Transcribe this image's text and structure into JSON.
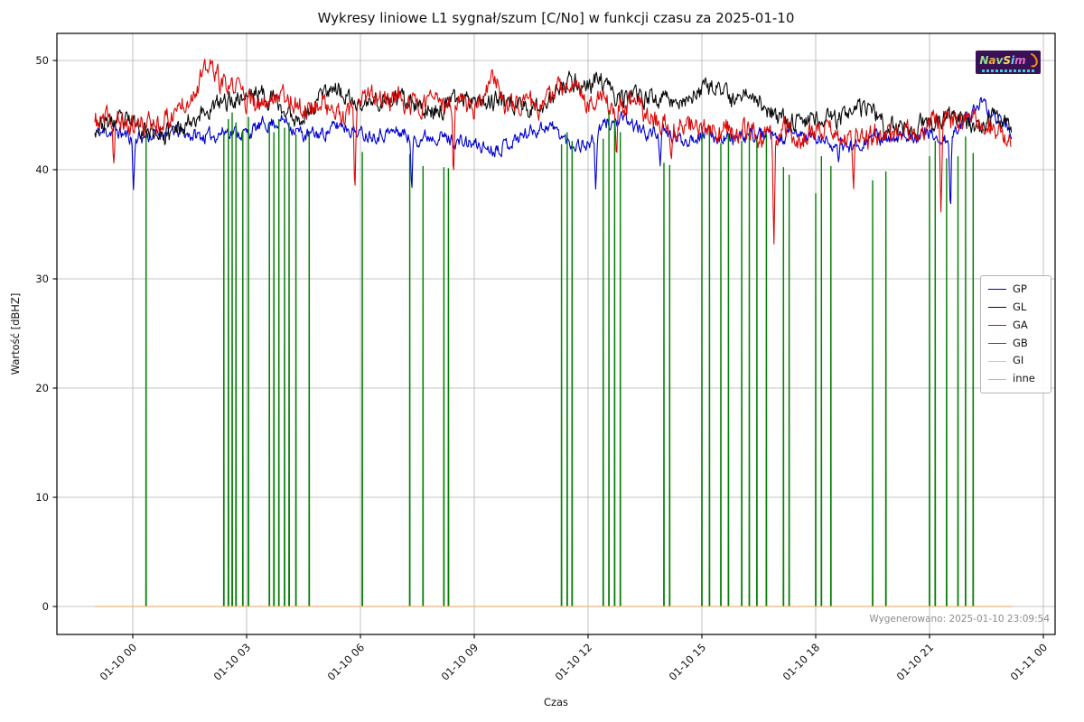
{
  "figure": {
    "generated_note": "Wygenerowano: 2025-01-10 23:09:54"
  },
  "logo": {
    "text": "NavSim",
    "letter_colors": [
      "#8fe08f",
      "#f0a840",
      "#8fe08f",
      "#f0e060",
      "#70d0f0",
      "#e070c0"
    ],
    "bg": "#3a1057",
    "swoosh_color": "#f4930f"
  },
  "chart_data": {
    "type": "line",
    "title": "Wykresy liniowe L1 sygnał/szum [C/No] w funkcji czasu za 2025-01-10",
    "xlabel": "Czas",
    "ylabel": "Wartość [dBHZ]",
    "grid": true,
    "grid_color": "#b0b0b0",
    "xlim_hours": [
      -2.0,
      24.31
    ],
    "ylim": [
      -2.56,
      52.48
    ],
    "y_ticks": [
      0,
      10,
      20,
      30,
      40,
      50
    ],
    "x_ticks": [
      {
        "hour": 0,
        "label": "01-10 00"
      },
      {
        "hour": 3,
        "label": "01-10 03"
      },
      {
        "hour": 6,
        "label": "01-10 06"
      },
      {
        "hour": 9,
        "label": "01-10 09"
      },
      {
        "hour": 12,
        "label": "01-10 12"
      },
      {
        "hour": 15,
        "label": "01-10 15"
      },
      {
        "hour": 18,
        "label": "01-10 18"
      },
      {
        "hour": 21,
        "label": "01-10 21"
      },
      {
        "hour": 24,
        "label": "01-11 00"
      }
    ],
    "time_range_hours": [
      -1.0,
      23.17
    ],
    "legend_position": "right",
    "series": [
      {
        "name": "GP",
        "color": "#0000d0",
        "width": 1.1,
        "seed": 11,
        "noise": 0.6,
        "anchors": [
          [
            -1,
            43.3
          ],
          [
            -0.5,
            43.6
          ],
          [
            0,
            42.9
          ],
          [
            0.5,
            43.1
          ],
          [
            1,
            43.6
          ],
          [
            1.5,
            43.2
          ],
          [
            2,
            43.0
          ],
          [
            2.5,
            43.6
          ],
          [
            3,
            43.3
          ],
          [
            3.5,
            44.2
          ],
          [
            4,
            44.5
          ],
          [
            4.5,
            43.1
          ],
          [
            5,
            43.3
          ],
          [
            5.5,
            44.2
          ],
          [
            6,
            43.3
          ],
          [
            6.5,
            43.3
          ],
          [
            7,
            43.5
          ],
          [
            7.5,
            42.9
          ],
          [
            8,
            43.2
          ],
          [
            8.5,
            42.6
          ],
          [
            9,
            42.3
          ],
          [
            9.5,
            41.9
          ],
          [
            10,
            42.6
          ],
          [
            10.5,
            43.6
          ],
          [
            11,
            44.1
          ],
          [
            11.5,
            42.4
          ],
          [
            12,
            42.3
          ],
          [
            12.5,
            44.3
          ],
          [
            13,
            44.5
          ],
          [
            13.5,
            43.4
          ],
          [
            14,
            43.3
          ],
          [
            14.5,
            42.7
          ],
          [
            15,
            43.3
          ],
          [
            15.5,
            43.0
          ],
          [
            16,
            42.8
          ],
          [
            16.5,
            43.3
          ],
          [
            17,
            42.7
          ],
          [
            17.5,
            43.3
          ],
          [
            18,
            42.8
          ],
          [
            18.5,
            42.4
          ],
          [
            19,
            42.1
          ],
          [
            19.5,
            43.2
          ],
          [
            20,
            42.5
          ],
          [
            20.5,
            43.2
          ],
          [
            21,
            43.3
          ],
          [
            21.5,
            42.5
          ],
          [
            22,
            45.1
          ],
          [
            22.5,
            45.6
          ],
          [
            23,
            44.2
          ],
          [
            23.17,
            43.4
          ]
        ],
        "events": [
          [
            0.02,
            38.3
          ],
          [
            7.35,
            37.9
          ],
          [
            12.2,
            38.4
          ],
          [
            13.9,
            40.9
          ],
          [
            18.6,
            39.9
          ],
          [
            21.55,
            36.2
          ],
          [
            22.35,
            46.1
          ]
        ]
      },
      {
        "name": "GL",
        "color": "#0a0a0a",
        "width": 1.1,
        "seed": 23,
        "noise": 0.8,
        "anchors": [
          [
            -1,
            43.9
          ],
          [
            -0.5,
            44.4
          ],
          [
            0,
            44.3
          ],
          [
            0.5,
            43.5
          ],
          [
            1,
            43.3
          ],
          [
            1.5,
            44.6
          ],
          [
            2,
            45.5
          ],
          [
            2.5,
            46.3
          ],
          [
            3,
            46.8
          ],
          [
            3.3,
            47.1
          ],
          [
            3.7,
            46.4
          ],
          [
            4,
            45.3
          ],
          [
            4.3,
            44.7
          ],
          [
            4.7,
            45.4
          ],
          [
            5,
            47.2
          ],
          [
            5.3,
            47.7
          ],
          [
            5.7,
            46.2
          ],
          [
            6,
            45.8
          ],
          [
            6.5,
            46.3
          ],
          [
            7,
            46.4
          ],
          [
            7.5,
            45.6
          ],
          [
            8,
            45.4
          ],
          [
            8.5,
            46.4
          ],
          [
            9,
            46.7
          ],
          [
            9.5,
            46.2
          ],
          [
            10,
            46.3
          ],
          [
            10.5,
            45.5
          ],
          [
            11,
            46.4
          ],
          [
            11.3,
            47.4
          ],
          [
            11.6,
            48.2
          ],
          [
            12,
            47.6
          ],
          [
            12.3,
            48.3
          ],
          [
            12.6,
            47.0
          ],
          [
            13,
            46.4
          ],
          [
            13.5,
            46.6
          ],
          [
            14,
            46.6
          ],
          [
            14.5,
            46.3
          ],
          [
            15,
            47.1
          ],
          [
            15.4,
            47.5
          ],
          [
            15.8,
            46.2
          ],
          [
            16,
            46.8
          ],
          [
            16.3,
            47.2
          ],
          [
            16.6,
            46.0
          ],
          [
            17,
            44.7
          ],
          [
            17.5,
            44.5
          ],
          [
            18,
            44.8
          ],
          [
            18.5,
            44.6
          ],
          [
            19,
            45.2
          ],
          [
            19.4,
            45.6
          ],
          [
            19.8,
            44.3
          ],
          [
            20,
            44.1
          ],
          [
            20.5,
            43.7
          ],
          [
            21,
            44.4
          ],
          [
            21.5,
            44.9
          ],
          [
            22,
            44.3
          ],
          [
            22.3,
            43.5
          ],
          [
            22.7,
            44.6
          ],
          [
            23,
            44.6
          ],
          [
            23.17,
            44.2
          ]
        ],
        "events": [
          [
            0.85,
            41.8
          ],
          [
            5.05,
            48.4
          ],
          [
            19.8,
            42.1
          ]
        ]
      },
      {
        "name": "GA",
        "color": "#dd0707",
        "width": 1.1,
        "seed": 37,
        "noise": 0.95,
        "anchors": [
          [
            -1,
            44.3
          ],
          [
            -0.5,
            44.6
          ],
          [
            0,
            43.9
          ],
          [
            0.5,
            44.3
          ],
          [
            1,
            44.8
          ],
          [
            1.3,
            46.2
          ],
          [
            1.6,
            47.2
          ],
          [
            1.9,
            48.9
          ],
          [
            2.1,
            49.3
          ],
          [
            2.3,
            48.0
          ],
          [
            2.5,
            47.3
          ],
          [
            2.8,
            47.7
          ],
          [
            3,
            46.4
          ],
          [
            3.3,
            45.5
          ],
          [
            3.6,
            46.7
          ],
          [
            3.9,
            47.2
          ],
          [
            4.2,
            46.4
          ],
          [
            4.5,
            45.4
          ],
          [
            5,
            46.2
          ],
          [
            5.3,
            45.2
          ],
          [
            5.6,
            44.5
          ],
          [
            6,
            46.1
          ],
          [
            6.3,
            46.7
          ],
          [
            6.6,
            46.4
          ],
          [
            7,
            46.5
          ],
          [
            7.3,
            45.8
          ],
          [
            7.6,
            46.2
          ],
          [
            8,
            46.4
          ],
          [
            8.3,
            45.5
          ],
          [
            8.6,
            46.1
          ],
          [
            9,
            45.5
          ],
          [
            9.3,
            46.7
          ],
          [
            9.5,
            48.4
          ],
          [
            9.8,
            46.3
          ],
          [
            10,
            45.9
          ],
          [
            10.3,
            46.4
          ],
          [
            10.6,
            45.7
          ],
          [
            11,
            46.3
          ],
          [
            11.3,
            47.7
          ],
          [
            11.5,
            48.2
          ],
          [
            11.8,
            47.1
          ],
          [
            12,
            46.4
          ],
          [
            12.3,
            46.3
          ],
          [
            12.6,
            45.7
          ],
          [
            13,
            45.8
          ],
          [
            13.3,
            46.1
          ],
          [
            13.6,
            44.9
          ],
          [
            14,
            44.1
          ],
          [
            14.3,
            43.5
          ],
          [
            14.6,
            44.3
          ],
          [
            15,
            43.7
          ],
          [
            15.3,
            43.3
          ],
          [
            15.6,
            43.8
          ],
          [
            16,
            43.5
          ],
          [
            16.3,
            43.8
          ],
          [
            16.6,
            42.9
          ],
          [
            17,
            43.2
          ],
          [
            17.3,
            43.6
          ],
          [
            17.6,
            42.9
          ],
          [
            18,
            43.4
          ],
          [
            18.3,
            43.8
          ],
          [
            18.6,
            43.2
          ],
          [
            19,
            42.5
          ],
          [
            19.3,
            42.8
          ],
          [
            19.6,
            43.2
          ],
          [
            20,
            43.0
          ],
          [
            20.3,
            43.4
          ],
          [
            20.6,
            43.2
          ],
          [
            21,
            44.3
          ],
          [
            21.3,
            44.6
          ],
          [
            21.6,
            44.3
          ],
          [
            22,
            44.6
          ],
          [
            22.3,
            44.4
          ],
          [
            22.6,
            44.0
          ],
          [
            23,
            43.2
          ],
          [
            23.17,
            42.7
          ]
        ],
        "events": [
          [
            -0.5,
            40.4
          ],
          [
            2.05,
            49.6
          ],
          [
            5.85,
            37.6
          ],
          [
            8.45,
            40.1
          ],
          [
            9.5,
            48.7
          ],
          [
            12.75,
            41.4
          ],
          [
            14.2,
            40.5
          ],
          [
            16.9,
            34.3
          ],
          [
            19.0,
            37.9
          ],
          [
            21.3,
            36.0
          ]
        ]
      },
      {
        "name": "GB",
        "color": "#057f05",
        "width": 1.0,
        "baseline": 0,
        "spike_times": [
          0.35,
          2.4,
          2.52,
          2.62,
          2.72,
          2.9,
          3.05,
          3.6,
          3.72,
          3.85,
          4.0,
          4.12,
          4.3,
          4.65,
          6.05,
          7.3,
          7.65,
          8.2,
          8.32,
          11.3,
          11.45,
          11.58,
          12.4,
          12.55,
          12.7,
          12.85,
          14.0,
          14.15,
          15.0,
          15.2,
          15.5,
          15.7,
          16.05,
          16.25,
          16.45,
          16.7,
          17.15,
          17.3,
          18.0,
          18.15,
          18.4,
          19.5,
          19.85,
          21.0,
          21.15,
          21.45,
          21.75,
          21.95,
          22.15
        ],
        "spike_heights": [
          43.2,
          43.3,
          44.6,
          45.2,
          44.3,
          43.6,
          44.8,
          44.3,
          43.4,
          44.6,
          43.8,
          44.3,
          43.2,
          43.4,
          41.6,
          41.4,
          40.3,
          40.2,
          40.1,
          42.3,
          43.4,
          42.6,
          42.8,
          45.3,
          44.6,
          43.4,
          40.6,
          40.4,
          43.3,
          43.6,
          42.4,
          43.2,
          42.6,
          43.4,
          42.8,
          43.3,
          40.2,
          39.5,
          37.8,
          41.2,
          40.3,
          39.0,
          39.8,
          41.2,
          42.6,
          41.0,
          41.2,
          43.0,
          41.5
        ]
      },
      {
        "name": "GI",
        "color": "#aecfdf",
        "width": 1.0,
        "flat": 0
      },
      {
        "name": "inne",
        "color": "#f2b06a",
        "width": 1.2,
        "flat": 0,
        "opacity": 0.85
      }
    ]
  }
}
